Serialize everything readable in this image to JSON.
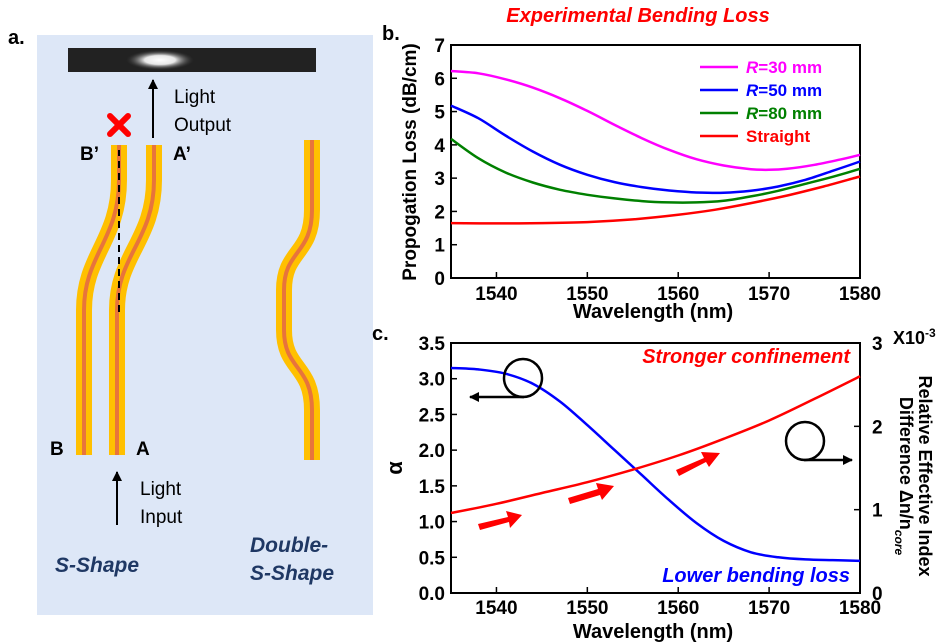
{
  "panel_a": {
    "label": "a.",
    "output_text": "Light Output",
    "input_text": "Light Input",
    "port_b_prime": "B’",
    "port_a_prime": "A’",
    "port_b": "B",
    "port_a": "A",
    "s_shape_caption": "S-Shape",
    "double_caption": "Double-S-Shape",
    "colors": {
      "background": "#dde7f7",
      "cladding": "#ffc000",
      "core": "#e8743b",
      "mark": "#ff0000"
    }
  },
  "chart_data": [
    {
      "type": "line",
      "panel_label": "b.",
      "title": "Experimental Bending Loss",
      "xlabel": "Wavelength (nm)",
      "ylabel": "Propogation Loss (dB/cm)",
      "xlim": [
        1535,
        1580
      ],
      "ylim": [
        0,
        7
      ],
      "xticks": [
        1540,
        1550,
        1560,
        1570,
        1580
      ],
      "yticks": [
        0,
        1,
        2,
        3,
        4,
        5,
        6,
        7
      ],
      "legend_position": "top-right",
      "series": [
        {
          "name_prefix": "R",
          "name": "=30 mm",
          "color": "#ff00ff",
          "x": [
            1535,
            1538,
            1541,
            1544,
            1547,
            1550,
            1553,
            1556,
            1559,
            1562,
            1565,
            1568,
            1570,
            1572,
            1575,
            1578,
            1580
          ],
          "y": [
            6.22,
            6.15,
            5.97,
            5.72,
            5.4,
            5.02,
            4.6,
            4.2,
            3.85,
            3.57,
            3.38,
            3.27,
            3.25,
            3.28,
            3.4,
            3.57,
            3.7
          ]
        },
        {
          "name_prefix": "R",
          "name": "=50 mm",
          "color": "#0000ff",
          "x": [
            1535,
            1538,
            1541,
            1544,
            1547,
            1550,
            1553,
            1556,
            1559,
            1562,
            1565,
            1568,
            1571,
            1574,
            1577,
            1580
          ],
          "y": [
            5.18,
            4.8,
            4.28,
            3.8,
            3.4,
            3.1,
            2.88,
            2.73,
            2.63,
            2.57,
            2.56,
            2.62,
            2.75,
            2.95,
            3.22,
            3.5
          ]
        },
        {
          "name_prefix": "R",
          "name": "=80 mm",
          "color": "#008000",
          "x": [
            1535,
            1538,
            1541,
            1544,
            1547,
            1550,
            1553,
            1556,
            1559,
            1562,
            1565,
            1568,
            1571,
            1574,
            1577,
            1580
          ],
          "y": [
            4.18,
            3.6,
            3.17,
            2.87,
            2.65,
            2.5,
            2.39,
            2.31,
            2.27,
            2.27,
            2.32,
            2.45,
            2.62,
            2.83,
            3.04,
            3.28
          ]
        },
        {
          "name_prefix": "",
          "name": "Straight",
          "color": "#ff0000",
          "x": [
            1535,
            1540,
            1545,
            1550,
            1555,
            1560,
            1564,
            1568,
            1572,
            1576,
            1580
          ],
          "y": [
            1.65,
            1.64,
            1.65,
            1.68,
            1.76,
            1.9,
            2.05,
            2.25,
            2.48,
            2.75,
            3.05
          ]
        }
      ]
    },
    {
      "type": "line",
      "panel_label": "c.",
      "xlabel": "Wavelength (nm)",
      "ylabel": "α",
      "ylabel_right_line1": "Relative Effective Index",
      "ylabel_right_line2": "Difference Δn/n",
      "ylabel_right_sub": "core",
      "right_scale_label": "X10",
      "right_scale_exp": "-3",
      "xlim": [
        1535,
        1580
      ],
      "ylim": [
        0,
        3.5
      ],
      "ylim_right": [
        0,
        3
      ],
      "xticks": [
        1540,
        1550,
        1560,
        1570,
        1580
      ],
      "yticks": [
        0.0,
        0.5,
        1.0,
        1.5,
        2.0,
        2.5,
        3.0,
        3.5
      ],
      "yticks_labels": [
        "0.0",
        "0.5",
        "1.0",
        "1.5",
        "2.0",
        "2.5",
        "3.0",
        "3.5"
      ],
      "yticks_right": [
        0,
        1,
        2,
        3
      ],
      "annotation_top": "Stronger  confinement",
      "annotation_bottom": "Lower bending loss",
      "series": [
        {
          "axis": "left",
          "color": "#0000ff",
          "x": [
            1535,
            1538,
            1541,
            1544,
            1547,
            1550,
            1553,
            1556,
            1559,
            1562,
            1565,
            1568,
            1571,
            1574,
            1577,
            1580
          ],
          "y": [
            3.15,
            3.13,
            3.07,
            2.93,
            2.68,
            2.35,
            2.0,
            1.65,
            1.3,
            0.98,
            0.73,
            0.57,
            0.5,
            0.47,
            0.46,
            0.45
          ]
        },
        {
          "axis": "right",
          "color": "#ff0000",
          "x": [
            1535,
            1540,
            1545,
            1550,
            1555,
            1560,
            1565,
            1570,
            1575,
            1580
          ],
          "y": [
            0.96,
            1.07,
            1.2,
            1.33,
            1.48,
            1.65,
            1.85,
            2.07,
            2.33,
            2.6
          ]
        }
      ]
    }
  ]
}
